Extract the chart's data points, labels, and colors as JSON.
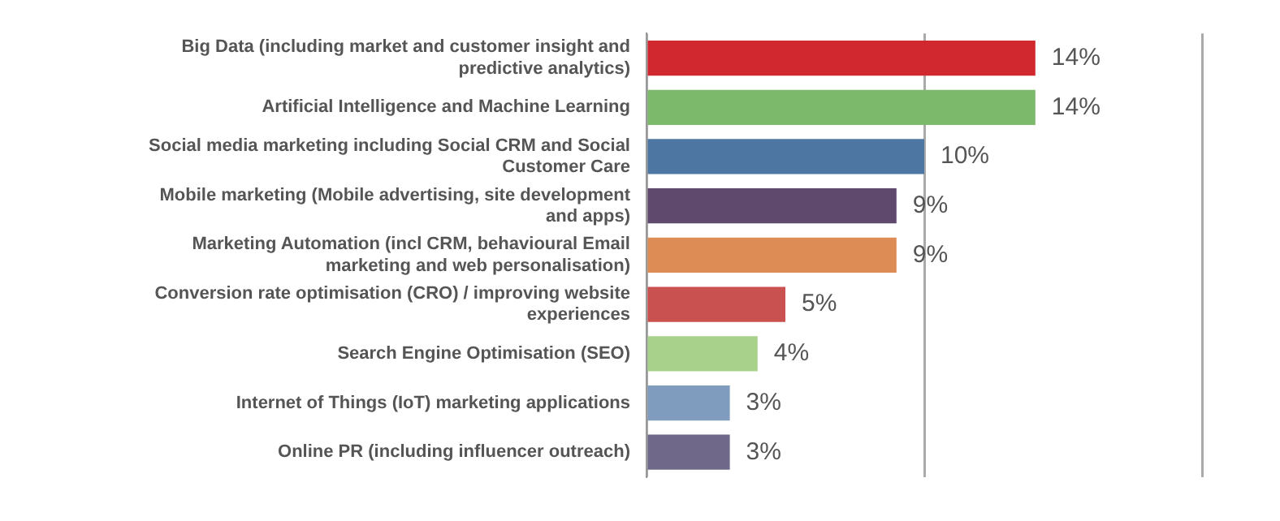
{
  "chart_data": {
    "type": "bar",
    "orientation": "horizontal",
    "categories": [
      "Big Data (including market and customer insight and predictive analytics)",
      "Artificial Intelligence and Machine Learning",
      "Social media marketing including Social CRM and Social Customer Care",
      "Mobile marketing (Mobile advertising, site development and apps)",
      "Marketing Automation (incl CRM, behavioural Email marketing and web personalisation)",
      "Conversion rate optimisation (CRO) / improving website experiences",
      "Search Engine Optimisation (SEO)",
      "Internet of Things (IoT) marketing applications",
      "Online PR (including influencer outreach)"
    ],
    "values": [
      14,
      14,
      10,
      9,
      9,
      5,
      4,
      3,
      3
    ],
    "colors": [
      "#d0282e",
      "#7db96a",
      "#4e76a3",
      "#5f4a6e",
      "#de8c55",
      "#c9514f",
      "#a8d18b",
      "#7f9bbd",
      "#706889"
    ],
    "value_labels": [
      "14%",
      "14%",
      "10%",
      "9%",
      "9%",
      "5%",
      "4%",
      "3%",
      "3%"
    ],
    "xlim": [
      0,
      20
    ],
    "xticks": [
      {
        "value": 0,
        "label": null
      },
      {
        "value": 10,
        "label": null
      },
      {
        "value": 20,
        "label": null
      }
    ],
    "grid": "x",
    "tick_labels": "y"
  }
}
